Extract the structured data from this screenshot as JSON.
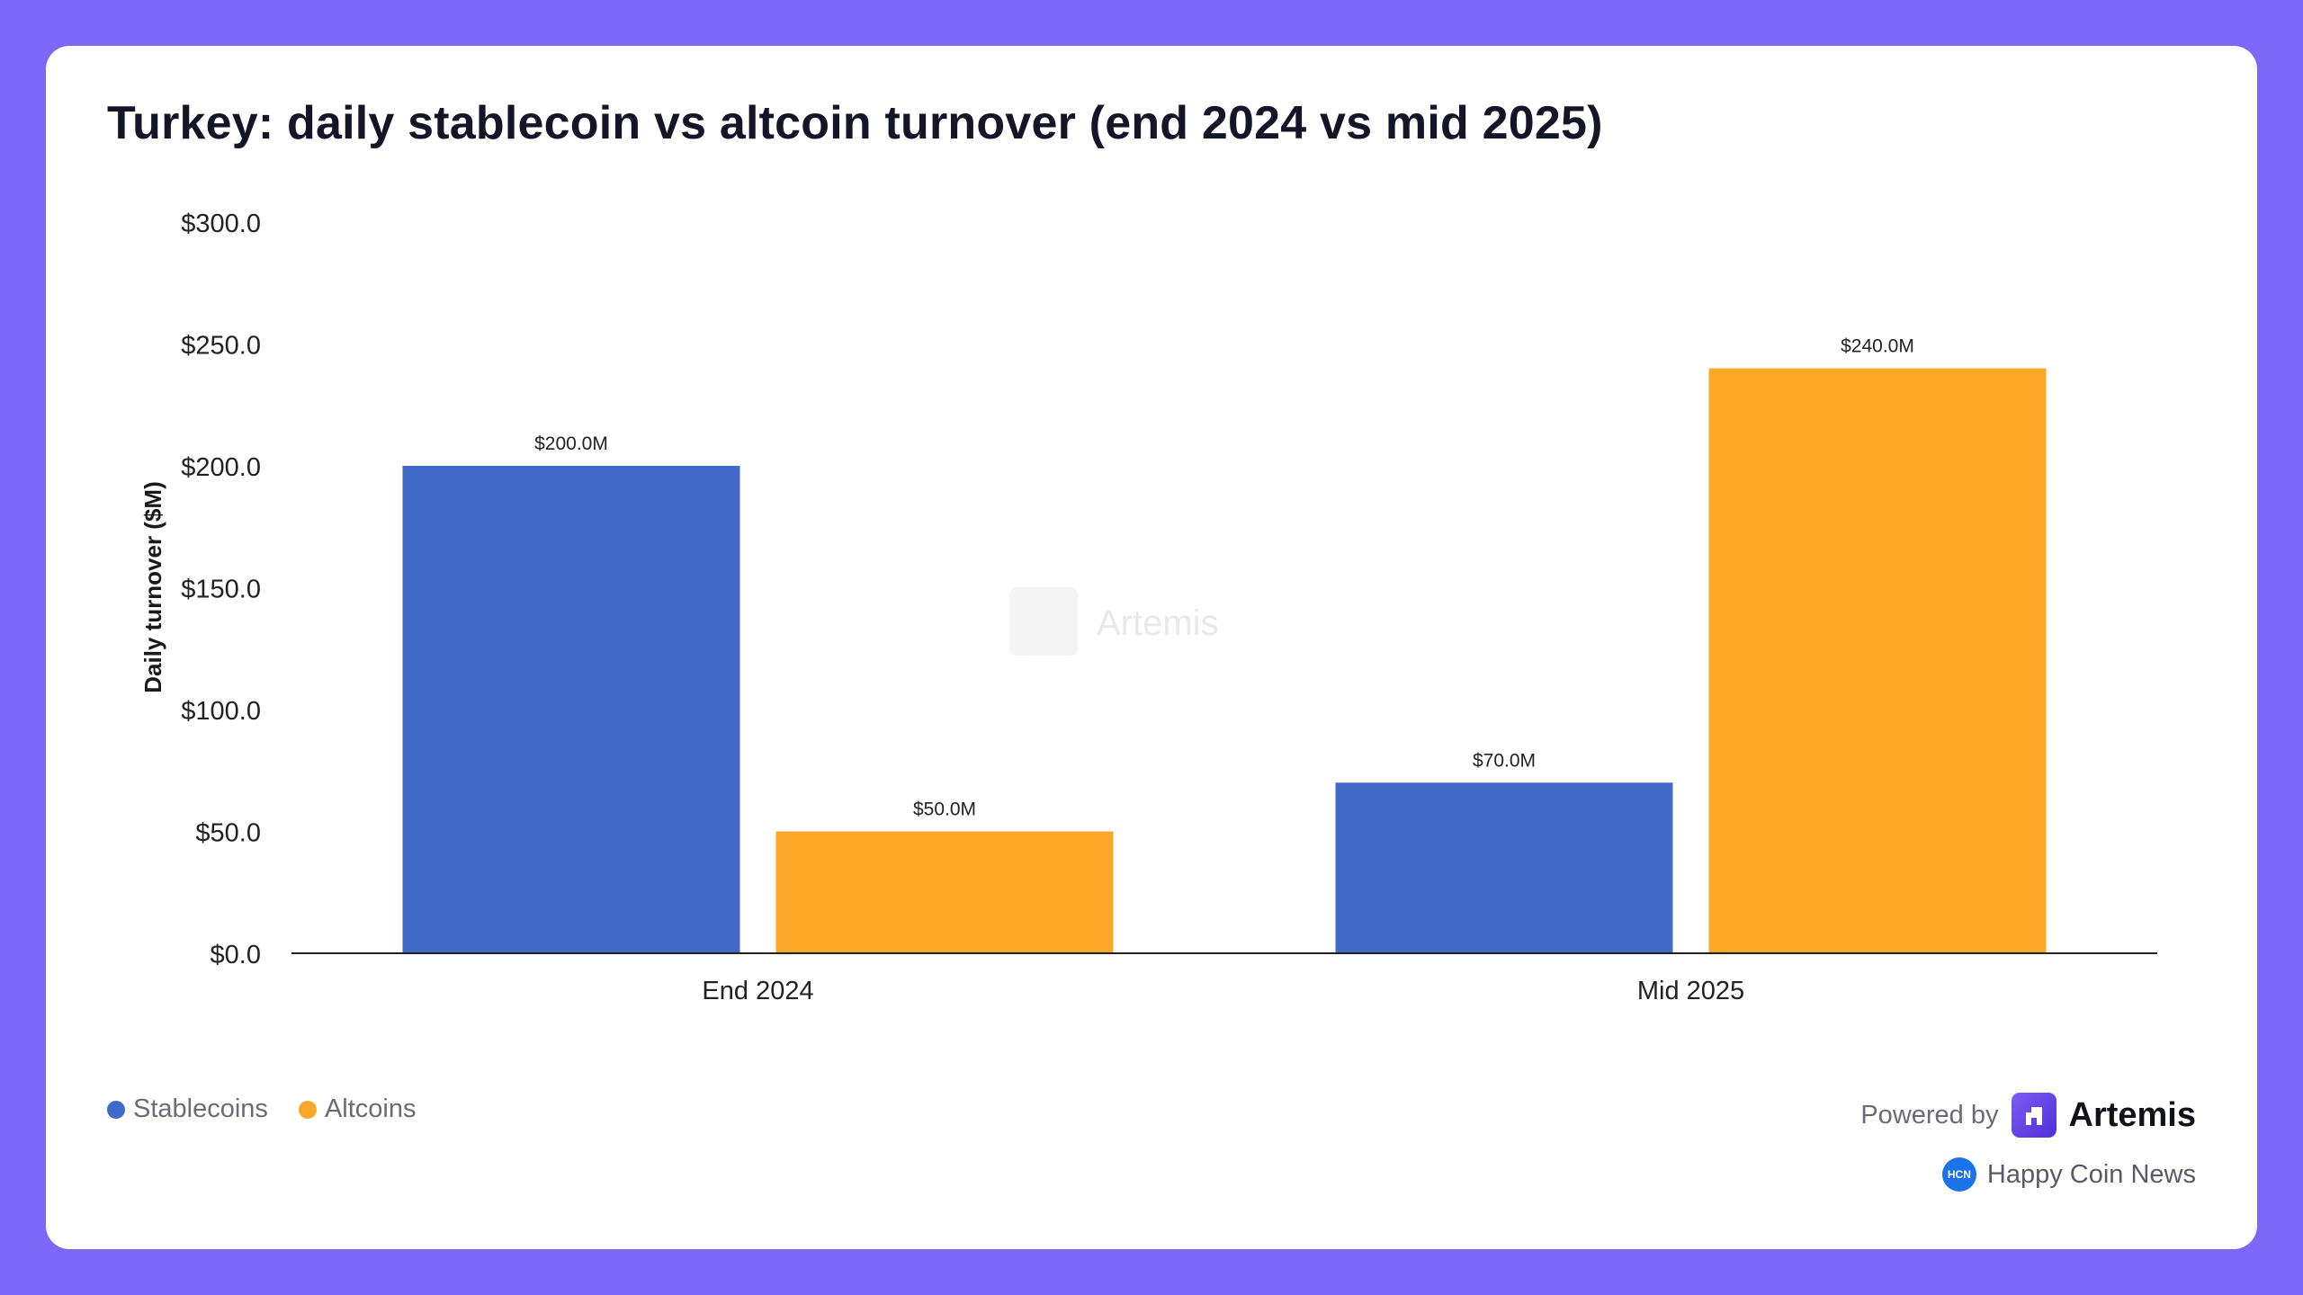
{
  "chart_data": {
    "type": "bar",
    "title": "Turkey: daily stablecoin vs altcoin turnover (end 2024 vs mid 2025)",
    "ylabel": "Daily turnover ($M)",
    "xlabel": "",
    "categories": [
      "End 2024",
      "Mid 2025"
    ],
    "series": [
      {
        "name": "Stablecoins",
        "color": "#4169c8",
        "values": [
          200.0,
          70.0
        ],
        "labels": [
          "$200.0M",
          "$70.0M"
        ]
      },
      {
        "name": "Altcoins",
        "color": "#fba728",
        "values": [
          50.0,
          240.0
        ],
        "labels": [
          "$50.0M",
          "$240.0M"
        ]
      }
    ],
    "ylim": [
      0,
      300
    ],
    "yticks": [
      0,
      50,
      100,
      150,
      200,
      250,
      300
    ],
    "ytick_labels": [
      "$0.0",
      "$50.0",
      "$100.0",
      "$150.0",
      "$200.0",
      "$250.0",
      "$300.0"
    ],
    "grid": false,
    "legend_position": "bottom-left"
  },
  "watermark": {
    "text": "Artemis"
  },
  "footer": {
    "powered_by": "Powered by",
    "brand": "Artemis",
    "publisher_logo_text": "HCN",
    "publisher": "Happy Coin News"
  }
}
